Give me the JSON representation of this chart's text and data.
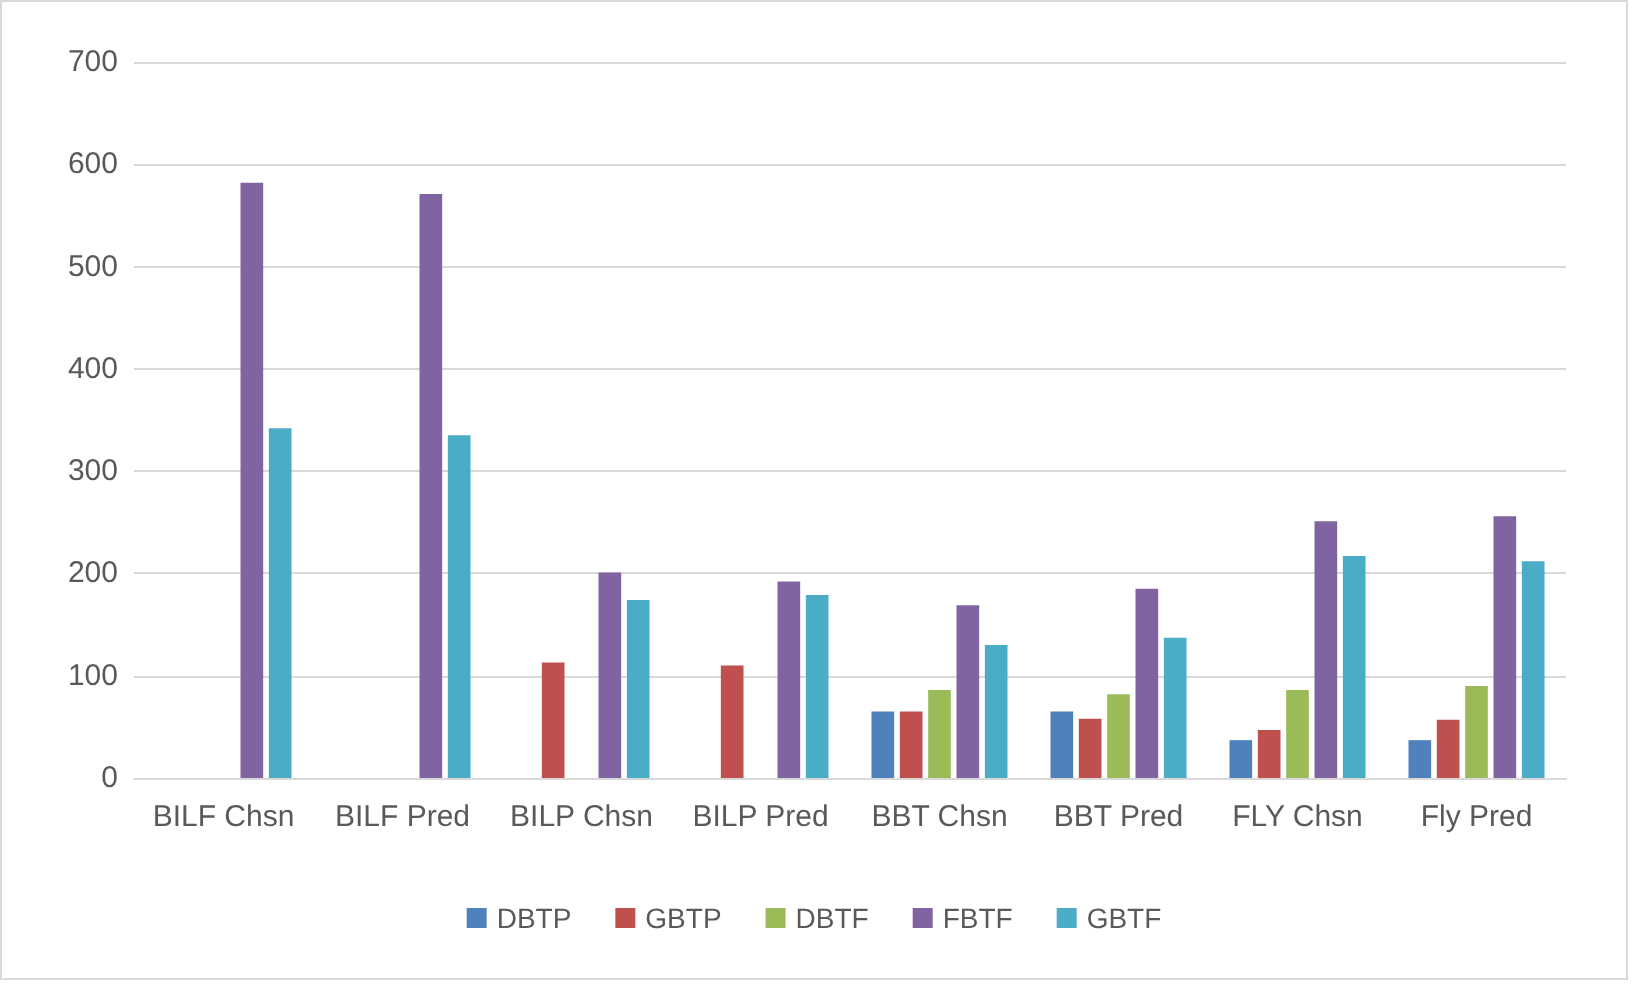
{
  "chart_data": {
    "type": "bar",
    "categories": [
      "BILF Chsn",
      "BILF Pred",
      "BILP Chsn",
      "BILP Pred",
      "BBT Chsn",
      "BBT Pred",
      "FLY Chsn",
      "Fly Pred"
    ],
    "series": [
      {
        "name": "DBTP",
        "color": "#4f81bd",
        "values": [
          null,
          null,
          null,
          null,
          65,
          65,
          37,
          37
        ]
      },
      {
        "name": "GBTP",
        "color": "#c0504d",
        "values": [
          null,
          null,
          113,
          110,
          65,
          58,
          47,
          57
        ]
      },
      {
        "name": "DBTF",
        "color": "#9bbb59",
        "values": [
          null,
          null,
          null,
          null,
          86,
          82,
          86,
          90
        ]
      },
      {
        "name": "FBTF",
        "color": "#8064a2",
        "values": [
          582,
          571,
          201,
          192,
          169,
          185,
          251,
          256
        ]
      },
      {
        "name": "GBTF",
        "color": "#4bacc6",
        "values": [
          342,
          335,
          174,
          179,
          130,
          137,
          217,
          212
        ]
      }
    ],
    "ylim": [
      0,
      700
    ],
    "yticks": [
      0,
      100,
      200,
      300,
      400,
      500,
      600,
      700
    ],
    "grid": "y",
    "legend": "bottom"
  }
}
